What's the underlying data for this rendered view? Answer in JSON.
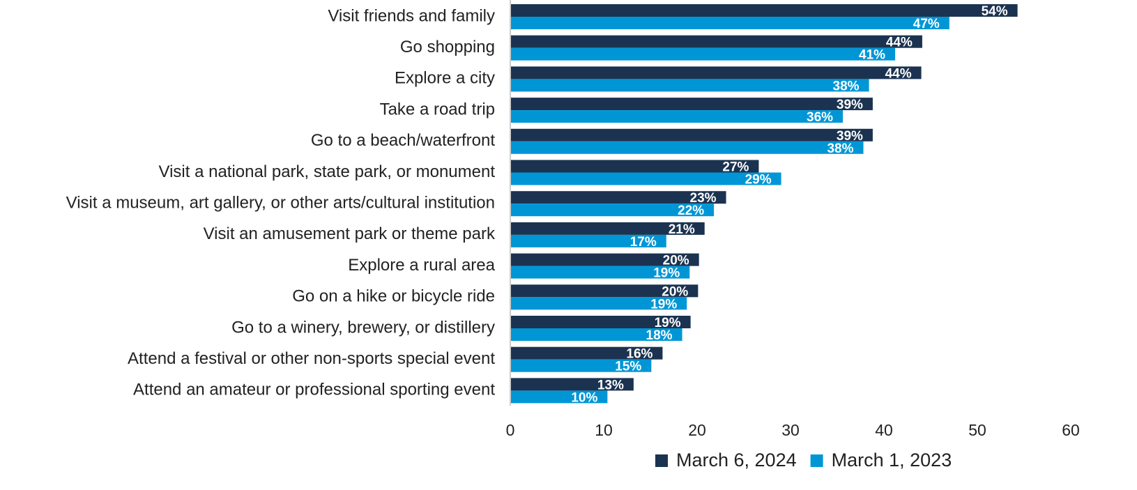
{
  "chart_data": {
    "type": "barh",
    "categories": [
      "Visit friends and family",
      "Go shopping",
      "Explore a city",
      "Take a road trip",
      "Go to a beach/waterfront",
      "Visit a national park, state park, or monument",
      "Visit a museum, art gallery, or other arts/cultural institution",
      "Visit an amusement park or theme park",
      "Explore a rural area",
      "Go on a hike or bicycle ride",
      "Go to a winery, brewery, or distillery",
      "Attend a festival or other non-sports special event",
      "Attend an amateur or professional sporting event"
    ],
    "series": [
      {
        "name": "March 6, 2024",
        "color": "#1b3350",
        "values": [
          54.3,
          44.1,
          44.0,
          38.8,
          38.8,
          26.6,
          23.1,
          20.8,
          20.2,
          20.1,
          19.3,
          16.3,
          13.2
        ],
        "value_labels": [
          "54%",
          "44%",
          "44%",
          "39%",
          "39%",
          "27%",
          "23%",
          "21%",
          "20%",
          "20%",
          "19%",
          "16%",
          "13%"
        ]
      },
      {
        "name": "March 1, 2023",
        "color": "#0096d6",
        "values": [
          47.0,
          41.2,
          38.4,
          35.6,
          37.8,
          29.0,
          21.8,
          16.7,
          19.2,
          18.9,
          18.4,
          15.1,
          10.4
        ],
        "value_labels": [
          "47%",
          "41%",
          "38%",
          "36%",
          "38%",
          "29%",
          "22%",
          "17%",
          "19%",
          "19%",
          "18%",
          "15%",
          "10%"
        ]
      }
    ],
    "xlim": [
      0,
      60
    ],
    "xticks": [
      0,
      10,
      20,
      30,
      40,
      50,
      60
    ],
    "legend": "bottom"
  }
}
